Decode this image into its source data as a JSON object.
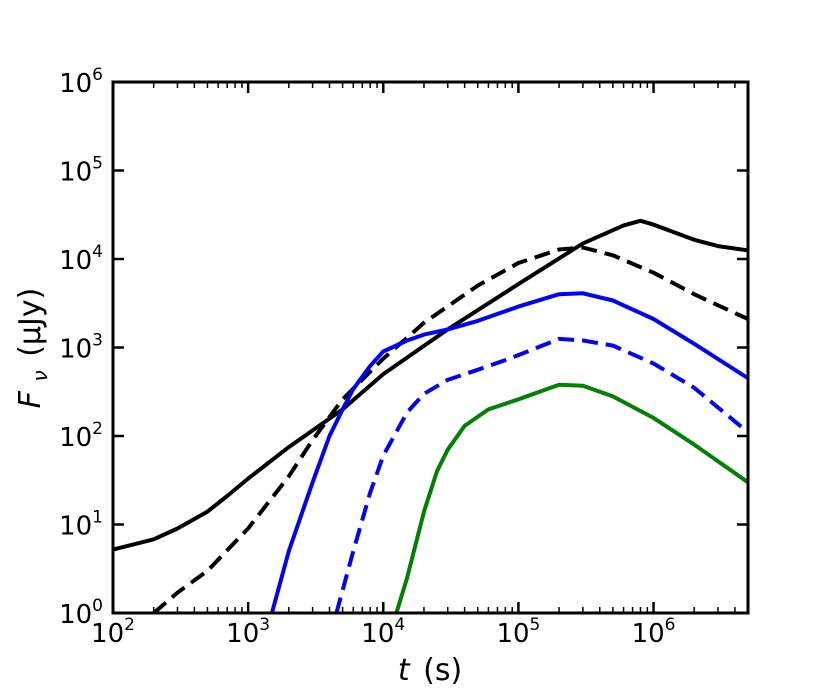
{
  "chart_data": {
    "type": "line",
    "title": "",
    "xlabel": {
      "var": "t",
      "unit": "(s)"
    },
    "ylabel": {
      "var": "F",
      "sub": "ν",
      "unit": "(μJy)"
    },
    "xscale": "log",
    "yscale": "log",
    "xlim": [
      100,
      5000000
    ],
    "ylim": [
      1,
      1000000
    ],
    "xticks": [
      {
        "value": 100,
        "base": "10",
        "exp": "2"
      },
      {
        "value": 1000,
        "base": "10",
        "exp": "3"
      },
      {
        "value": 10000,
        "base": "10",
        "exp": "4"
      },
      {
        "value": 100000,
        "base": "10",
        "exp": "5"
      },
      {
        "value": 1000000,
        "base": "10",
        "exp": "6"
      }
    ],
    "yticks": [
      {
        "value": 1,
        "base": "10",
        "exp": "0"
      },
      {
        "value": 10,
        "base": "10",
        "exp": "1"
      },
      {
        "value": 100,
        "base": "10",
        "exp": "2"
      },
      {
        "value": 1000,
        "base": "10",
        "exp": "3"
      },
      {
        "value": 10000,
        "base": "10",
        "exp": "4"
      },
      {
        "value": 100000,
        "base": "10",
        "exp": "5"
      },
      {
        "value": 1000000,
        "base": "10",
        "exp": "6"
      }
    ],
    "series": [
      {
        "name": "black-solid",
        "color": "#000000",
        "dash": "solid",
        "points": [
          [
            100,
            5.2
          ],
          [
            200,
            6.8
          ],
          [
            300,
            9
          ],
          [
            500,
            14
          ],
          [
            700,
            21
          ],
          [
            1000,
            33
          ],
          [
            2000,
            75
          ],
          [
            5000,
            200
          ],
          [
            10000,
            500
          ],
          [
            30000,
            1600
          ],
          [
            100000,
            5200
          ],
          [
            300000,
            15000
          ],
          [
            600000,
            24000
          ],
          [
            800000,
            27000
          ],
          [
            1000000,
            24500
          ],
          [
            2000000,
            16500
          ],
          [
            3000000,
            14000
          ],
          [
            5000000,
            12500
          ]
        ]
      },
      {
        "name": "black-dashed",
        "color": "#000000",
        "dash": "dashed",
        "points": [
          [
            200,
            1
          ],
          [
            300,
            1.7
          ],
          [
            500,
            3
          ],
          [
            1000,
            9
          ],
          [
            2000,
            35
          ],
          [
            3000,
            90
          ],
          [
            5000,
            260
          ],
          [
            10000,
            750
          ],
          [
            20000,
            1900
          ],
          [
            50000,
            5000
          ],
          [
            100000,
            9000
          ],
          [
            200000,
            12800
          ],
          [
            300000,
            13500
          ],
          [
            500000,
            11000
          ],
          [
            1000000,
            7000
          ],
          [
            2000000,
            4000
          ],
          [
            3000000,
            3000
          ],
          [
            5000000,
            2100
          ]
        ]
      },
      {
        "name": "blue-solid",
        "color": "#0000ff",
        "dash": "solid",
        "points": [
          [
            1500,
            1
          ],
          [
            2000,
            5
          ],
          [
            3000,
            30
          ],
          [
            4000,
            100
          ],
          [
            5000,
            200
          ],
          [
            6000,
            340
          ],
          [
            8000,
            620
          ],
          [
            10000,
            900
          ],
          [
            15000,
            1200
          ],
          [
            20000,
            1400
          ],
          [
            30000,
            1600
          ],
          [
            50000,
            2000
          ],
          [
            100000,
            2900
          ],
          [
            200000,
            4000
          ],
          [
            300000,
            4100
          ],
          [
            500000,
            3400
          ],
          [
            1000000,
            2100
          ],
          [
            2000000,
            1100
          ],
          [
            5000000,
            450
          ]
        ]
      },
      {
        "name": "blue-dashed",
        "color": "#0000ff",
        "dash": "dashed",
        "points": [
          [
            4500,
            1
          ],
          [
            6000,
            5
          ],
          [
            8000,
            23
          ],
          [
            10000,
            60
          ],
          [
            15000,
            185
          ],
          [
            20000,
            300
          ],
          [
            30000,
            430
          ],
          [
            50000,
            560
          ],
          [
            80000,
            720
          ],
          [
            100000,
            820
          ],
          [
            200000,
            1250
          ],
          [
            300000,
            1200
          ],
          [
            500000,
            1050
          ],
          [
            1000000,
            660
          ],
          [
            2000000,
            350
          ],
          [
            5000000,
            110
          ]
        ]
      },
      {
        "name": "green-solid",
        "color": "#008000",
        "dash": "solid",
        "points": [
          [
            12500,
            1
          ],
          [
            15000,
            2.5
          ],
          [
            20000,
            14
          ],
          [
            25000,
            40
          ],
          [
            30000,
            70
          ],
          [
            40000,
            130
          ],
          [
            60000,
            200
          ],
          [
            100000,
            260
          ],
          [
            200000,
            380
          ],
          [
            300000,
            370
          ],
          [
            500000,
            280
          ],
          [
            1000000,
            160
          ],
          [
            2000000,
            80
          ],
          [
            5000000,
            30
          ]
        ]
      }
    ]
  }
}
